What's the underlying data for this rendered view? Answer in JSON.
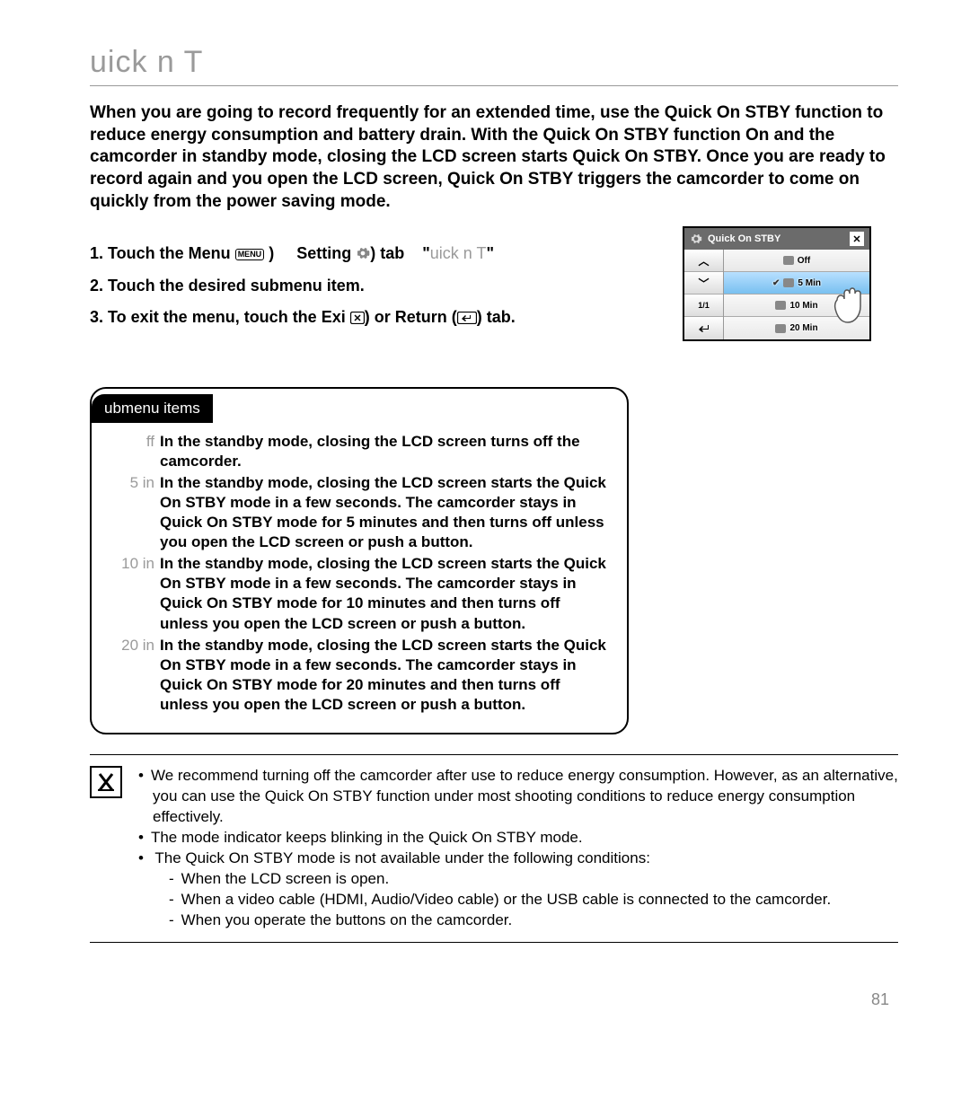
{
  "title": "uick n T",
  "intro": "When you are going to record frequently for an extended time, use the Quick On STBY function to reduce energy consumption and battery drain. With the Quick On STBY function On and the camcorder in standby mode, closing the LCD screen starts Quick On STBY. Once you are ready to record again and you open the LCD screen, Quick On STBY triggers the camcorder to come on quickly from the power saving mode.",
  "steps": {
    "s1a": "Touch the Menu",
    "s1b": "Setting",
    "s1c": "tab",
    "s1d": "uick n T",
    "s2": "Touch the desired submenu item.",
    "s3a": "To exit the menu, touch the Exi",
    "s3b": "or Return",
    "s3c": "tab."
  },
  "menu_icon_label": "MENU",
  "submenu_tab": "ubmenu items",
  "submenu": [
    {
      "label": "ff",
      "desc": "In the standby mode, closing the LCD screen turns off the camcorder."
    },
    {
      "label": "5 in",
      "desc": "In the standby mode, closing the LCD screen starts the Quick On STBY mode in a few seconds. The camcorder stays in Quick On STBY mode for 5 minutes and then turns off unless you open the LCD screen or push a button."
    },
    {
      "label": "10 in",
      "desc": "In the standby mode, closing the LCD screen starts the Quick On STBY mode in a few seconds. The camcorder stays in Quick On STBY mode for 10 minutes and then turns off unless you open the LCD screen or push a button."
    },
    {
      "label": "20 in",
      "desc": "In the standby mode, closing the LCD screen starts the Quick On STBY mode in a few seconds. The camcorder stays in Quick On STBY mode for 20 minutes and then turns off unless you open the LCD screen or push a button."
    }
  ],
  "notes": {
    "n1": "We recommend turning off the camcorder after use to reduce energy consumption. However, as an alternative, you can use the Quick On STBY function under most shooting conditions to reduce energy consumption effectively.",
    "n2": "The mode indicator keeps blinking in the Quick On STBY mode.",
    "n3": "The Quick On STBY mode is not available under the following conditions:",
    "n3a": "When the LCD screen is open.",
    "n3b": "When a video cable (HDMI, Audio/Video cable) or the USB cable is connected to the camcorder.",
    "n3c": "When you operate the buttons on the camcorder."
  },
  "osd": {
    "title": "Quick On STBY",
    "page": "1/1",
    "items": [
      "Off",
      "5 Min",
      "10 Min",
      "20 Min"
    ],
    "selected_index": 1
  },
  "page_number": "81",
  "colors": {
    "text": "#000000",
    "muted": "#9a9a9a",
    "osd_header": "#6b6b6b",
    "osd_selected": "#8cd0f5"
  }
}
